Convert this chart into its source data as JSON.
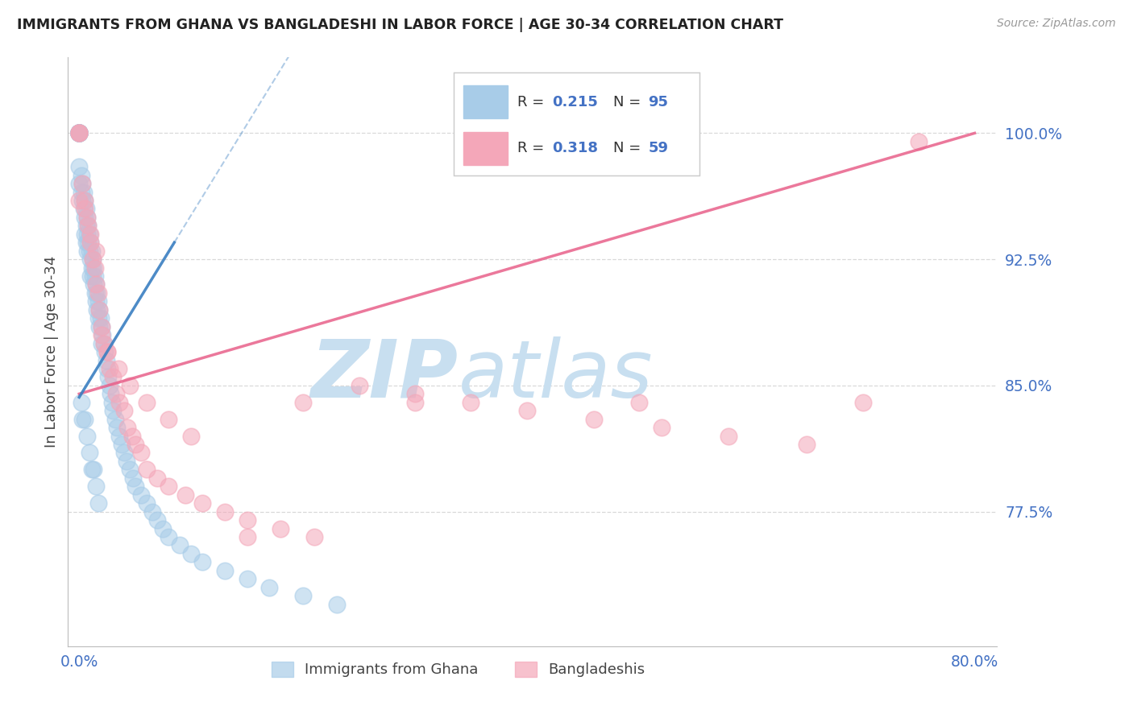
{
  "title": "IMMIGRANTS FROM GHANA VS BANGLADESHI IN LABOR FORCE | AGE 30-34 CORRELATION CHART",
  "source": "Source: ZipAtlas.com",
  "ylabel": "In Labor Force | Age 30-34",
  "xlim": [
    -0.01,
    0.82
  ],
  "ylim": [
    0.695,
    1.045
  ],
  "yticks": [
    0.775,
    0.85,
    0.925,
    1.0
  ],
  "ytick_labels": [
    "77.5%",
    "85.0%",
    "92.5%",
    "100.0%"
  ],
  "xtick_vals": [
    0.0,
    0.8
  ],
  "xtick_labels": [
    "0.0%",
    "80.0%"
  ],
  "ghana_R": 0.215,
  "ghana_N": 95,
  "bangla_R": 0.318,
  "bangla_N": 59,
  "ghana_color": "#a8cce8",
  "bangla_color": "#f4a7b9",
  "ghana_line_color": "#3a7fc1",
  "bangla_line_color": "#e8608a",
  "grid_color": "#d0d0d0",
  "title_color": "#222222",
  "axis_label_color": "#444444",
  "tick_color": "#4472c4",
  "watermark_zip": "ZIP",
  "watermark_atlas": "atlas",
  "watermark_color_zip": "#c8dff0",
  "watermark_color_atlas": "#c8dff0",
  "legend_r_color": "#4472c4",
  "legend_n_color": "#4472c4",
  "ghana_x": [
    0.0,
    0.0,
    0.0,
    0.0,
    0.0,
    0.0,
    0.0,
    0.0,
    0.0,
    0.0,
    0.0,
    0.0,
    0.002,
    0.002,
    0.003,
    0.003,
    0.004,
    0.004,
    0.005,
    0.005,
    0.005,
    0.006,
    0.006,
    0.006,
    0.007,
    0.007,
    0.007,
    0.008,
    0.008,
    0.009,
    0.009,
    0.01,
    0.01,
    0.01,
    0.011,
    0.011,
    0.012,
    0.012,
    0.013,
    0.013,
    0.014,
    0.014,
    0.015,
    0.015,
    0.016,
    0.016,
    0.017,
    0.017,
    0.018,
    0.018,
    0.019,
    0.02,
    0.02,
    0.021,
    0.022,
    0.023,
    0.024,
    0.025,
    0.026,
    0.027,
    0.028,
    0.029,
    0.03,
    0.032,
    0.034,
    0.036,
    0.038,
    0.04,
    0.042,
    0.045,
    0.048,
    0.05,
    0.055,
    0.06,
    0.065,
    0.07,
    0.075,
    0.08,
    0.09,
    0.1,
    0.11,
    0.13,
    0.15,
    0.17,
    0.2,
    0.23,
    0.002,
    0.003,
    0.005,
    0.007,
    0.009,
    0.011,
    0.013,
    0.015,
    0.017
  ],
  "ghana_y": [
    1.0,
    1.0,
    1.0,
    1.0,
    1.0,
    1.0,
    1.0,
    1.0,
    1.0,
    1.0,
    0.98,
    0.97,
    0.975,
    0.965,
    0.97,
    0.96,
    0.965,
    0.955,
    0.96,
    0.95,
    0.94,
    0.955,
    0.945,
    0.935,
    0.95,
    0.94,
    0.93,
    0.945,
    0.935,
    0.94,
    0.93,
    0.935,
    0.925,
    0.915,
    0.93,
    0.92,
    0.925,
    0.915,
    0.92,
    0.91,
    0.915,
    0.905,
    0.91,
    0.9,
    0.905,
    0.895,
    0.9,
    0.89,
    0.895,
    0.885,
    0.89,
    0.885,
    0.875,
    0.88,
    0.875,
    0.87,
    0.865,
    0.86,
    0.855,
    0.85,
    0.845,
    0.84,
    0.835,
    0.83,
    0.825,
    0.82,
    0.815,
    0.81,
    0.805,
    0.8,
    0.795,
    0.79,
    0.785,
    0.78,
    0.775,
    0.77,
    0.765,
    0.76,
    0.755,
    0.75,
    0.745,
    0.74,
    0.735,
    0.73,
    0.725,
    0.72,
    0.84,
    0.83,
    0.83,
    0.82,
    0.81,
    0.8,
    0.8,
    0.79,
    0.78
  ],
  "bangla_x": [
    0.0,
    0.0,
    0.0,
    0.0,
    0.003,
    0.005,
    0.007,
    0.008,
    0.01,
    0.012,
    0.014,
    0.015,
    0.017,
    0.018,
    0.02,
    0.022,
    0.025,
    0.027,
    0.03,
    0.033,
    0.036,
    0.04,
    0.043,
    0.047,
    0.05,
    0.055,
    0.06,
    0.07,
    0.08,
    0.095,
    0.11,
    0.13,
    0.15,
    0.18,
    0.21,
    0.25,
    0.3,
    0.35,
    0.4,
    0.46,
    0.52,
    0.58,
    0.65,
    0.7,
    0.75,
    0.005,
    0.01,
    0.015,
    0.02,
    0.025,
    0.035,
    0.045,
    0.06,
    0.08,
    0.1,
    0.15,
    0.2,
    0.3,
    0.5
  ],
  "bangla_y": [
    1.0,
    1.0,
    1.0,
    0.96,
    0.97,
    0.96,
    0.95,
    0.945,
    0.935,
    0.925,
    0.92,
    0.91,
    0.905,
    0.895,
    0.885,
    0.875,
    0.87,
    0.86,
    0.855,
    0.845,
    0.84,
    0.835,
    0.825,
    0.82,
    0.815,
    0.81,
    0.8,
    0.795,
    0.79,
    0.785,
    0.78,
    0.775,
    0.77,
    0.765,
    0.76,
    0.85,
    0.845,
    0.84,
    0.835,
    0.83,
    0.825,
    0.82,
    0.815,
    0.84,
    0.995,
    0.955,
    0.94,
    0.93,
    0.88,
    0.87,
    0.86,
    0.85,
    0.84,
    0.83,
    0.82,
    0.76,
    0.84,
    0.84,
    0.84
  ]
}
